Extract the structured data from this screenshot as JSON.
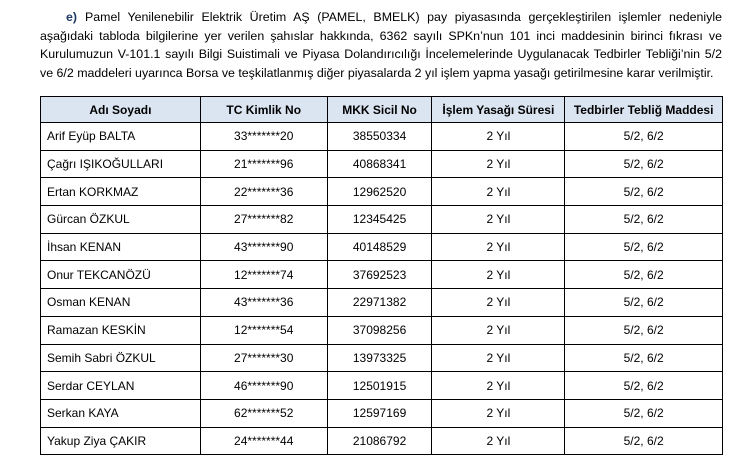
{
  "paragraph": {
    "label": "e)",
    "text": "Pamel Yenilenebilir Elektrik Üretim AŞ (PAMEL, BMELK) pay piyasasında gerçekleştirilen işlemler nedeniyle aşağıdaki tabloda bilgilerine yer verilen şahıslar hakkında, 6362 sayılı SPKn’nun 101 inci maddesinin birinci fıkrası ve Kurulumuzun V-101.1 sayılı Bilgi Suistimali ve Piyasa Dolandırıcılığı İncelemelerinde Uygulanacak Tedbirler Tebliği’nin 5/2 ve 6/2 maddeleri uyarınca Borsa ve teşkilatlanmış diğer piyasalarda 2 yıl işlem yapma yasağı getirilmesine karar verilmiştir."
  },
  "table": {
    "header": [
      "Adı Soyadı",
      "TC Kimlik No",
      "MKK Sicil No",
      "İşlem Yasağı Süresi",
      "Tedbirler Tebliğ Maddesi"
    ],
    "rows": [
      [
        "Arif Eyüp BALTA",
        "33*******20",
        "38550334",
        "2 Yıl",
        "5/2, 6/2"
      ],
      [
        "Çağrı IŞIKOĞULLARI",
        "21*******96",
        "40868341",
        "2 Yıl",
        "5/2, 6/2"
      ],
      [
        "Ertan KORKMAZ",
        "22*******36",
        "12962520",
        "2 Yıl",
        "5/2, 6/2"
      ],
      [
        "Gürcan ÖZKUL",
        "27*******82",
        "12345425",
        "2 Yıl",
        "5/2, 6/2"
      ],
      [
        "İhsan KENAN",
        "43*******90",
        "40148529",
        "2 Yıl",
        "5/2, 6/2"
      ],
      [
        "Onur TEKCANÖZÜ",
        "12*******74",
        "37692523",
        "2 Yıl",
        "5/2, 6/2"
      ],
      [
        "Osman KENAN",
        "43*******36",
        "22971382",
        "2 Yıl",
        "5/2, 6/2"
      ],
      [
        "Ramazan KESKİN",
        "12*******54",
        "37098256",
        "2 Yıl",
        "5/2, 6/2"
      ],
      [
        "Semih Sabri ÖZKUL",
        "27*******30",
        "13973325",
        "2 Yıl",
        "5/2, 6/2"
      ],
      [
        "Serdar CEYLAN",
        "46*******90",
        "12501915",
        "2 Yıl",
        "5/2, 6/2"
      ],
      [
        "Serkan KAYA",
        "62*******52",
        "12597169",
        "2 Yıl",
        "5/2, 6/2"
      ],
      [
        "Yakup Ziya ÇAKIR",
        "24*******44",
        "21086792",
        "2 Yıl",
        "5/2, 6/2"
      ]
    ]
  }
}
